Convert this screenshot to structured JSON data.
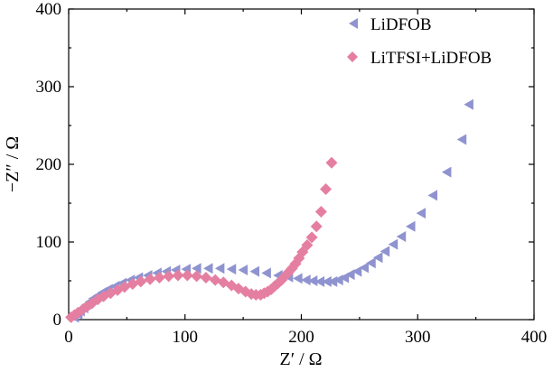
{
  "chart_data": {
    "type": "scatter",
    "title": "",
    "xlabel": "Z′ / Ω",
    "ylabel": "−Z″ / Ω",
    "xlim": [
      0,
      400
    ],
    "ylim": [
      0,
      400
    ],
    "xticks": [
      0,
      100,
      200,
      300,
      400
    ],
    "yticks": [
      0,
      100,
      200,
      300,
      400
    ],
    "legend_position": "top-right",
    "series": [
      {
        "name": "LiDFOB",
        "marker": "triangle-left",
        "color": "#8f93cf",
        "x": [
          5,
          8,
          10,
          13,
          15,
          18,
          21,
          25,
          29,
          34,
          40,
          46,
          53,
          60,
          68,
          76,
          84,
          92,
          101,
          110,
          120,
          130,
          140,
          150,
          160,
          170,
          180,
          189,
          197,
          204,
          210,
          216,
          222,
          227,
          232,
          237,
          242,
          248,
          254,
          260,
          266,
          272,
          279,
          286,
          294,
          303,
          313,
          325,
          338,
          344
        ],
        "y": [
          3,
          7,
          11,
          15,
          19,
          23,
          27,
          31,
          35,
          39,
          43,
          47,
          51,
          54,
          57,
          60,
          62,
          64,
          65,
          66,
          66,
          66,
          65,
          64,
          62,
          60,
          57,
          55,
          53,
          51,
          50,
          49,
          49,
          49,
          51,
          54,
          58,
          62,
          67,
          73,
          80,
          88,
          97,
          107,
          120,
          137,
          160,
          190,
          232,
          277
        ]
      },
      {
        "name": "LiTFSI+LiDFOB",
        "marker": "diamond",
        "color": "#e57fa2",
        "x": [
          2,
          5,
          8,
          12,
          16,
          20,
          25,
          30,
          36,
          42,
          48,
          55,
          62,
          70,
          78,
          86,
          94,
          102,
          110,
          118,
          126,
          133,
          140,
          146,
          152,
          157,
          161,
          165,
          168,
          171,
          174,
          177,
          180,
          183,
          186,
          189,
          192,
          195,
          198,
          201,
          205,
          209,
          213,
          217,
          221,
          226
        ],
        "y": [
          3,
          6,
          9,
          13,
          17,
          21,
          26,
          30,
          34,
          38,
          42,
          46,
          49,
          52,
          54,
          56,
          57,
          57,
          56,
          54,
          51,
          48,
          44,
          40,
          36,
          33,
          32,
          32,
          34,
          36,
          39,
          43,
          47,
          51,
          56,
          61,
          66,
          72,
          79,
          87,
          96,
          106,
          120,
          139,
          168,
          202
        ]
      }
    ]
  }
}
